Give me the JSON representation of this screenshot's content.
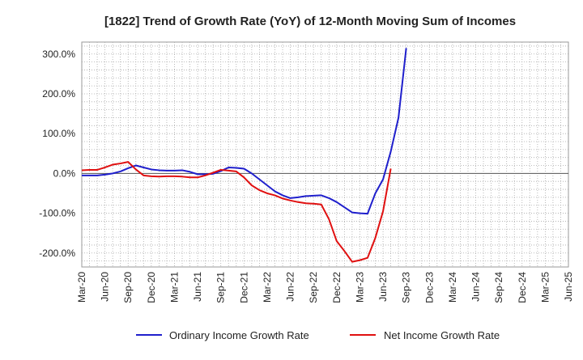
{
  "chart_data": {
    "type": "line",
    "title": "[1822]  Trend of Growth Rate (YoY) of 12-Month Moving Sum of Incomes",
    "xlabel": "",
    "ylabel": "",
    "ylim": [
      -235,
      330
    ],
    "y_ticks": [
      300,
      200,
      100,
      0,
      -100,
      -200
    ],
    "y_tick_labels": [
      "300.0%",
      "200.0%",
      "100.0%",
      "0.0%",
      "-100.0%",
      "-200.0%"
    ],
    "x_tick_labels": [
      "Mar-20",
      "Jun-20",
      "Sep-20",
      "Dec-20",
      "Mar-21",
      "Jun-21",
      "Sep-21",
      "Dec-21",
      "Mar-22",
      "Jun-22",
      "Sep-22",
      "Dec-22",
      "Mar-23",
      "Jun-23",
      "Sep-23",
      "Dec-23",
      "Mar-24",
      "Jun-24",
      "Sep-24",
      "Dec-24",
      "Mar-25",
      "Jun-25"
    ],
    "grid": true,
    "legend_position": "bottom",
    "series": [
      {
        "name": "Ordinary Income Growth Rate",
        "color": "#1f1fcc",
        "values": [
          -5,
          -5,
          -5,
          -3,
          0,
          5,
          13,
          20,
          15,
          10,
          8,
          7,
          7,
          8,
          4,
          -2,
          -2,
          -1,
          6,
          15,
          14,
          12,
          0,
          -15,
          -30,
          -45,
          -55,
          -62,
          -60,
          -57,
          -56,
          -55,
          -62,
          -72,
          -85,
          -98,
          -100,
          -101,
          -50,
          -15,
          55,
          140,
          315
        ]
      },
      {
        "name": "Net Income Growth Rate",
        "color": "#e01010",
        "values": [
          8,
          9,
          9,
          15,
          22,
          25,
          29,
          10,
          -5,
          -7,
          -8,
          -7,
          -7,
          -8,
          -10,
          -10,
          -5,
          2,
          9,
          7,
          5,
          -10,
          -30,
          -42,
          -50,
          -55,
          -63,
          -68,
          -72,
          -75,
          -76,
          -78,
          -115,
          -170,
          -195,
          -222,
          -218,
          -212,
          -162,
          -95,
          12
        ]
      }
    ]
  }
}
